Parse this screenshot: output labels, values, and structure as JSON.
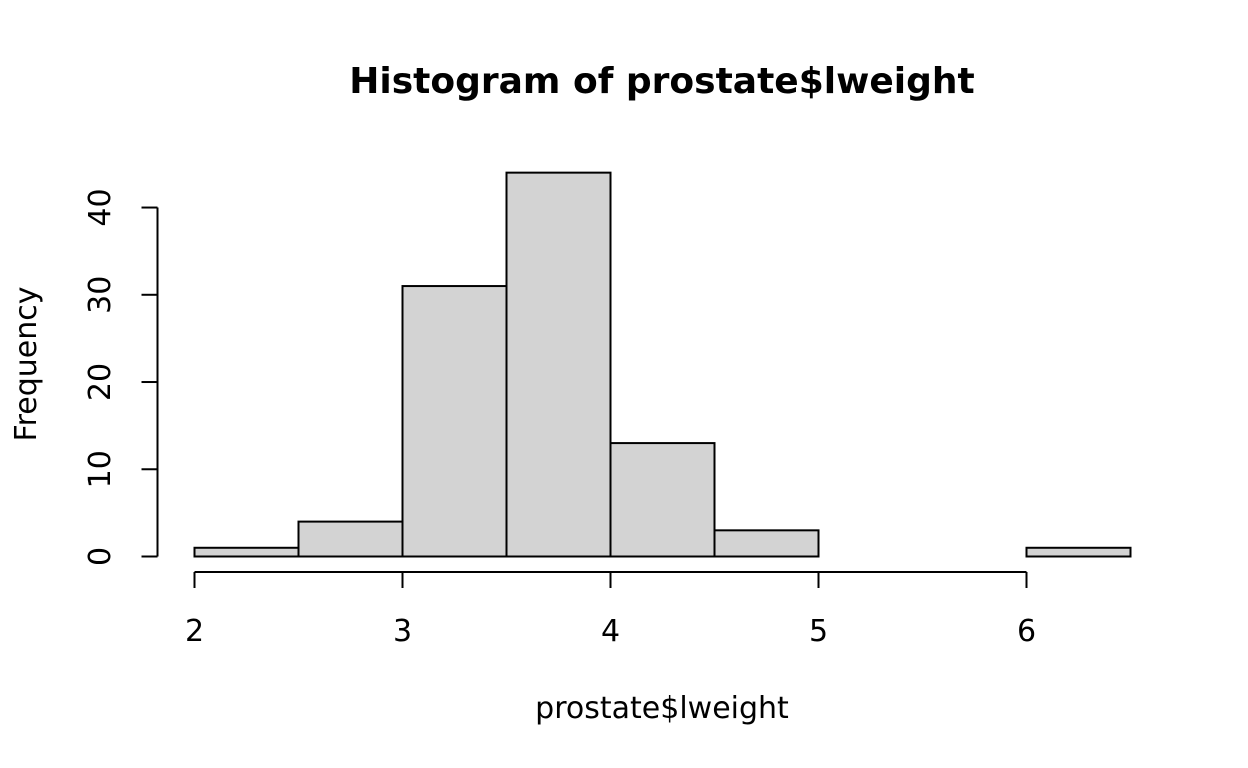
{
  "chart_data": {
    "type": "bar",
    "title": "Histogram of prostate$lweight",
    "xlabel": "prostate$lweight",
    "ylabel": "Frequency",
    "bins": [
      {
        "start": 2.0,
        "end": 2.5,
        "count": 1
      },
      {
        "start": 2.5,
        "end": 3.0,
        "count": 4
      },
      {
        "start": 3.0,
        "end": 3.5,
        "count": 31
      },
      {
        "start": 3.5,
        "end": 4.0,
        "count": 44
      },
      {
        "start": 4.0,
        "end": 4.5,
        "count": 13
      },
      {
        "start": 4.5,
        "end": 5.0,
        "count": 3
      },
      {
        "start": 5.0,
        "end": 5.5,
        "count": 0
      },
      {
        "start": 5.5,
        "end": 6.0,
        "count": 0
      },
      {
        "start": 6.0,
        "end": 6.5,
        "count": 1
      }
    ],
    "xticks": [
      "2",
      "3",
      "4",
      "5",
      "6"
    ],
    "yticks": [
      "0",
      "10",
      "20",
      "30",
      "40"
    ],
    "xlim": [
      2,
      6.5
    ],
    "ylim": [
      0,
      44
    ],
    "grid": false,
    "bar_color": "#d3d3d3",
    "edge_color": "#000000"
  }
}
